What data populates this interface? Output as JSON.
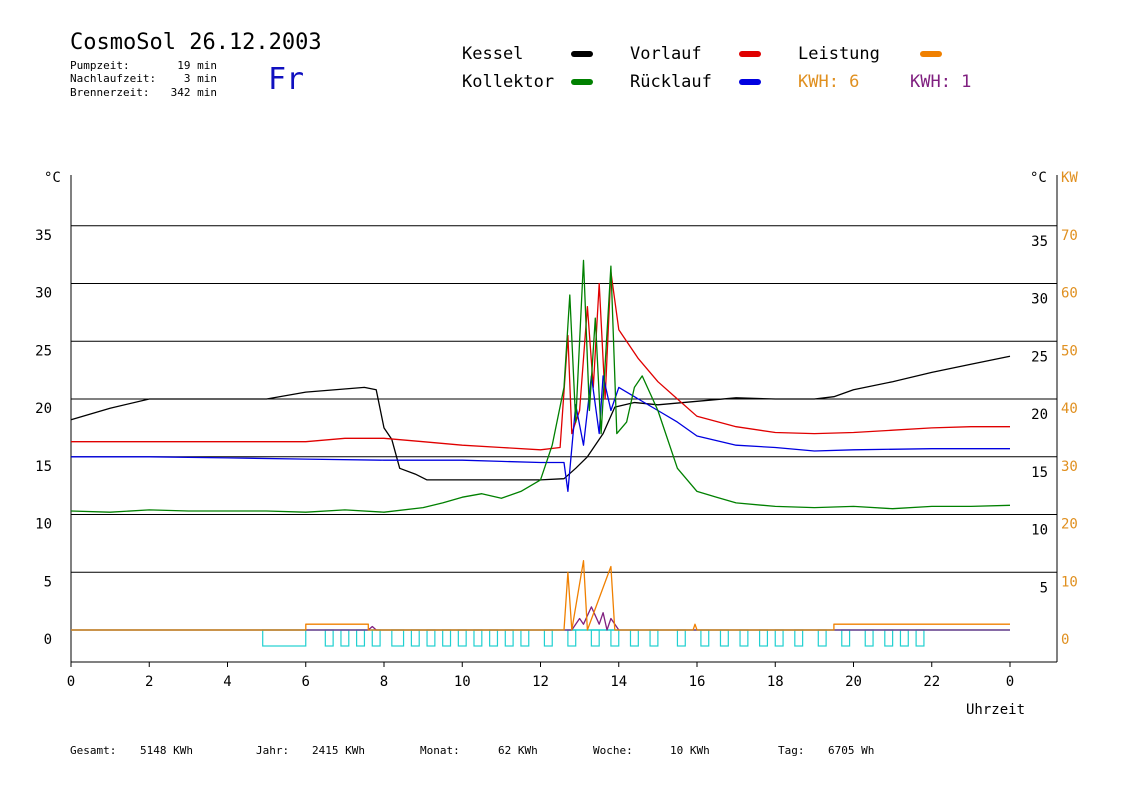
{
  "header": {
    "title": "CosmoSol 26.12.2003",
    "day": "Fr",
    "stats": [
      {
        "label": "Pumpzeit:",
        "value": "19 min"
      },
      {
        "label": "Nachlaufzeit:",
        "value": "3 min"
      },
      {
        "label": "Brennerzeit:",
        "value": "342 min"
      }
    ]
  },
  "legend": [
    {
      "label": "Kessel",
      "color": "#000000"
    },
    {
      "label": "Vorlauf",
      "color": "#e00000"
    },
    {
      "label": "Leistung",
      "color": "#f08000"
    },
    {
      "label": "Kollektor",
      "color": "#008000"
    },
    {
      "label": "Rücklauf",
      "color": "#0000e0"
    },
    {
      "label": "KWH: 6",
      "color": "#e09020"
    },
    {
      "label": "KWH: 1",
      "color": "#802080"
    }
  ],
  "footer": [
    {
      "label": "Gesamt:",
      "value": "5148 KWh"
    },
    {
      "label": "Jahr:",
      "value": "2415 KWh"
    },
    {
      "label": "Monat:",
      "value": "62 KWh"
    },
    {
      "label": "Woche:",
      "value": "10 KWh"
    },
    {
      "label": "Tag:",
      "value": "6705 Wh"
    }
  ],
  "chart_data": {
    "type": "line",
    "xlabel": "Uhrzeit",
    "ylabel_left": "°C",
    "ylabel_right": "°C",
    "ylabel_right2": "KW",
    "xlim": [
      0,
      24
    ],
    "ylim": [
      -3,
      40
    ],
    "ylim_kw": [
      -6,
      80
    ],
    "x_ticks": [
      "0",
      "2",
      "4",
      "6",
      "8",
      "10",
      "12",
      "14",
      "16",
      "18",
      "20",
      "22",
      "0"
    ],
    "y_ticks_left": [
      "0",
      "5",
      "10",
      "15",
      "20",
      "25",
      "30",
      "35"
    ],
    "y_ticks_right": [
      "5",
      "10",
      "15",
      "20",
      "25",
      "30",
      "35"
    ],
    "y_ticks_kw": [
      "0",
      "10",
      "20",
      "30",
      "40",
      "50",
      "60",
      "70"
    ],
    "grid": true,
    "series": [
      {
        "name": "Kessel",
        "color": "#000000",
        "points": [
          [
            0,
            18.2
          ],
          [
            1,
            19.2
          ],
          [
            2,
            20
          ],
          [
            5,
            20
          ],
          [
            6,
            20.6
          ],
          [
            7.5,
            21
          ],
          [
            7.8,
            20.8
          ],
          [
            8.0,
            17.5
          ],
          [
            8.2,
            16.5
          ],
          [
            8.4,
            14
          ],
          [
            8.8,
            13.5
          ],
          [
            9.1,
            13
          ],
          [
            10,
            13
          ],
          [
            11,
            13
          ],
          [
            12,
            13
          ],
          [
            12.6,
            13.1
          ],
          [
            12.9,
            14
          ],
          [
            13.2,
            15
          ],
          [
            13.6,
            17
          ],
          [
            13.9,
            19.3
          ],
          [
            14.4,
            19.7
          ],
          [
            15,
            19.5
          ],
          [
            16,
            19.8
          ],
          [
            17,
            20.1
          ],
          [
            18,
            20
          ],
          [
            19,
            20
          ],
          [
            19.5,
            20.2
          ],
          [
            20,
            20.8
          ],
          [
            21,
            21.5
          ],
          [
            22,
            22.3
          ],
          [
            23,
            23
          ],
          [
            24,
            23.7
          ]
        ]
      },
      {
        "name": "Vorlauf",
        "color": "#e00000",
        "points": [
          [
            0,
            16.3
          ],
          [
            2,
            16.3
          ],
          [
            4,
            16.3
          ],
          [
            6,
            16.3
          ],
          [
            7,
            16.6
          ],
          [
            8,
            16.6
          ],
          [
            9,
            16.3
          ],
          [
            10,
            16
          ],
          [
            11,
            15.8
          ],
          [
            12,
            15.6
          ],
          [
            12.5,
            15.8
          ],
          [
            12.7,
            25.5
          ],
          [
            12.8,
            17
          ],
          [
            13,
            19
          ],
          [
            13.2,
            28
          ],
          [
            13.35,
            21
          ],
          [
            13.5,
            30
          ],
          [
            13.65,
            20
          ],
          [
            13.8,
            31
          ],
          [
            14,
            26
          ],
          [
            14.5,
            23.5
          ],
          [
            15,
            21.5
          ],
          [
            15.5,
            20
          ],
          [
            16,
            18.5
          ],
          [
            17,
            17.6
          ],
          [
            18,
            17.1
          ],
          [
            19,
            17
          ],
          [
            20,
            17.1
          ],
          [
            21,
            17.3
          ],
          [
            22,
            17.5
          ],
          [
            23,
            17.6
          ],
          [
            24,
            17.6
          ]
        ]
      },
      {
        "name": "Rücklauf",
        "color": "#0000e0",
        "points": [
          [
            0,
            15
          ],
          [
            2,
            15
          ],
          [
            4,
            14.9
          ],
          [
            6,
            14.8
          ],
          [
            8,
            14.7
          ],
          [
            10,
            14.7
          ],
          [
            11,
            14.6
          ],
          [
            12,
            14.5
          ],
          [
            12.6,
            14.5
          ],
          [
            12.7,
            12
          ],
          [
            12.9,
            19.5
          ],
          [
            13.1,
            16
          ],
          [
            13.3,
            22
          ],
          [
            13.5,
            17
          ],
          [
            13.6,
            22
          ],
          [
            13.8,
            19
          ],
          [
            14,
            21
          ],
          [
            14.5,
            20
          ],
          [
            15,
            19
          ],
          [
            15.5,
            18
          ],
          [
            16,
            16.8
          ],
          [
            17,
            16
          ],
          [
            18,
            15.8
          ],
          [
            19,
            15.5
          ],
          [
            20,
            15.6
          ],
          [
            22,
            15.7
          ],
          [
            24,
            15.7
          ]
        ]
      },
      {
        "name": "Kollektor",
        "color": "#008000",
        "points": [
          [
            0,
            10.3
          ],
          [
            1,
            10.2
          ],
          [
            2,
            10.4
          ],
          [
            3,
            10.3
          ],
          [
            4,
            10.3
          ],
          [
            5,
            10.3
          ],
          [
            6,
            10.2
          ],
          [
            7,
            10.4
          ],
          [
            8,
            10.2
          ],
          [
            9,
            10.6
          ],
          [
            9.5,
            11
          ],
          [
            10,
            11.5
          ],
          [
            10.5,
            11.8
          ],
          [
            11,
            11.4
          ],
          [
            11.5,
            12
          ],
          [
            12,
            13
          ],
          [
            12.3,
            16
          ],
          [
            12.6,
            21
          ],
          [
            12.75,
            29
          ],
          [
            12.9,
            18
          ],
          [
            13.1,
            32
          ],
          [
            13.25,
            19
          ],
          [
            13.4,
            27
          ],
          [
            13.55,
            17
          ],
          [
            13.8,
            31.5
          ],
          [
            13.95,
            17
          ],
          [
            14.2,
            18
          ],
          [
            14.4,
            21
          ],
          [
            14.6,
            22
          ],
          [
            15,
            19
          ],
          [
            15.5,
            14
          ],
          [
            16,
            12
          ],
          [
            16.5,
            11.5
          ],
          [
            17,
            11
          ],
          [
            18,
            10.7
          ],
          [
            19,
            10.6
          ],
          [
            20,
            10.7
          ],
          [
            21,
            10.5
          ],
          [
            22,
            10.7
          ],
          [
            23,
            10.7
          ],
          [
            24,
            10.8
          ]
        ]
      }
    ],
    "leistung_kw": [
      [
        0,
        0
      ],
      [
        6.0,
        0
      ],
      [
        6.0,
        1
      ],
      [
        7.6,
        1
      ],
      [
        7.6,
        0
      ],
      [
        12.6,
        0
      ],
      [
        12.7,
        10
      ],
      [
        12.8,
        0
      ],
      [
        13.1,
        12
      ],
      [
        13.2,
        0
      ],
      [
        13.8,
        11
      ],
      [
        13.9,
        0
      ],
      [
        15.9,
        0
      ],
      [
        15.95,
        1
      ],
      [
        16.0,
        0
      ],
      [
        19.5,
        0
      ],
      [
        19.5,
        1
      ],
      [
        24,
        1
      ]
    ],
    "kwh1_kw": [
      [
        0,
        0
      ],
      [
        5,
        0
      ],
      [
        7.6,
        0
      ],
      [
        7.7,
        0.6
      ],
      [
        7.8,
        0
      ],
      [
        12.8,
        0
      ],
      [
        13.0,
        2
      ],
      [
        13.1,
        1
      ],
      [
        13.3,
        4
      ],
      [
        13.5,
        1
      ],
      [
        13.6,
        3
      ],
      [
        13.7,
        0
      ],
      [
        13.8,
        2
      ],
      [
        14,
        0
      ],
      [
        24,
        0
      ]
    ],
    "pump_segments": [
      [
        4.9,
        6.0
      ],
      [
        6.5,
        6.7
      ],
      [
        6.9,
        7.1
      ],
      [
        7.3,
        7.5
      ],
      [
        7.7,
        7.9
      ],
      [
        8.2,
        8.5
      ],
      [
        8.7,
        8.9
      ],
      [
        9.1,
        9.3
      ],
      [
        9.5,
        9.7
      ],
      [
        9.9,
        10.1
      ],
      [
        10.3,
        10.5
      ],
      [
        10.7,
        10.9
      ],
      [
        11.1,
        11.3
      ],
      [
        11.5,
        11.7
      ],
      [
        12.1,
        12.3
      ],
      [
        12.7,
        12.9
      ],
      [
        13.3,
        13.5
      ],
      [
        13.8,
        14
      ],
      [
        14.3,
        14.5
      ],
      [
        14.8,
        15
      ],
      [
        15.5,
        15.7
      ],
      [
        16.1,
        16.3
      ],
      [
        16.6,
        16.8
      ],
      [
        17.1,
        17.3
      ],
      [
        17.6,
        17.8
      ],
      [
        18.0,
        18.2
      ],
      [
        18.5,
        18.7
      ],
      [
        19.1,
        19.3
      ],
      [
        19.7,
        19.9
      ],
      [
        20.3,
        20.5
      ],
      [
        20.8,
        21.0
      ],
      [
        21.2,
        21.4
      ],
      [
        21.6,
        21.8
      ]
    ]
  }
}
